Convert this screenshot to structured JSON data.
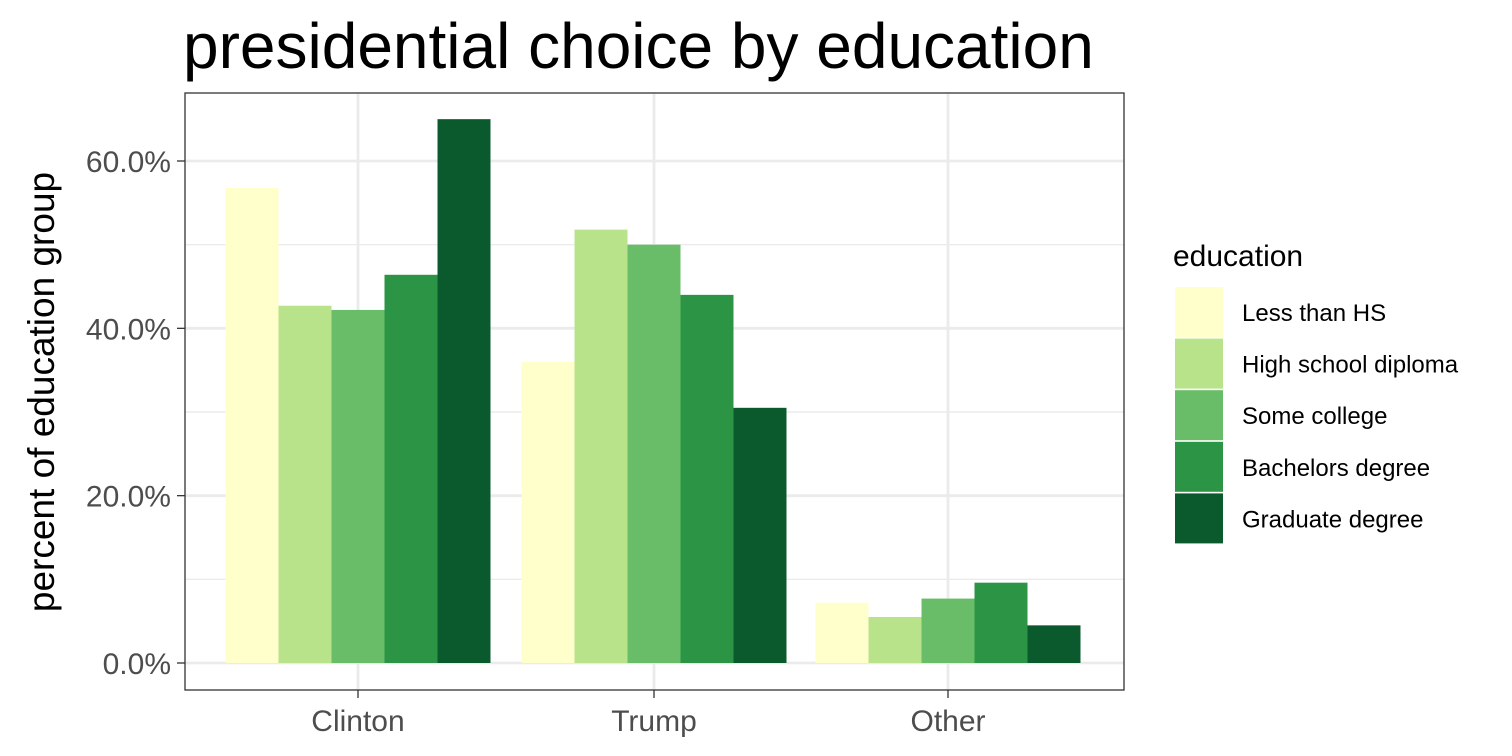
{
  "chart_data": {
    "type": "bar",
    "title": "presidential choice by education",
    "xlabel": "",
    "ylabel": "percent of education group",
    "categories": [
      "Clinton",
      "Trump",
      "Other"
    ],
    "y_ticks": [
      "0.0%",
      "20.0%",
      "40.0%",
      "60.0%"
    ],
    "y_tick_values": [
      0,
      20,
      40,
      60
    ],
    "ylim": [
      0,
      68
    ],
    "grid": true,
    "legend": {
      "title": "education",
      "placement": "right"
    },
    "series": [
      {
        "name": "Less than HS",
        "color": "#ffffcc",
        "values": [
          56.8,
          36.0,
          7.2
        ]
      },
      {
        "name": "High school diploma",
        "color": "#b8e38b",
        "values": [
          42.7,
          51.8,
          5.5
        ]
      },
      {
        "name": "Some college",
        "color": "#69bd69",
        "values": [
          42.2,
          50.0,
          7.7
        ]
      },
      {
        "name": "Bachelors degree",
        "color": "#2c9545",
        "values": [
          46.4,
          44.0,
          9.6
        ]
      },
      {
        "name": "Graduate degree",
        "color": "#0b5a2d",
        "values": [
          65.0,
          30.5,
          4.5
        ]
      }
    ]
  }
}
